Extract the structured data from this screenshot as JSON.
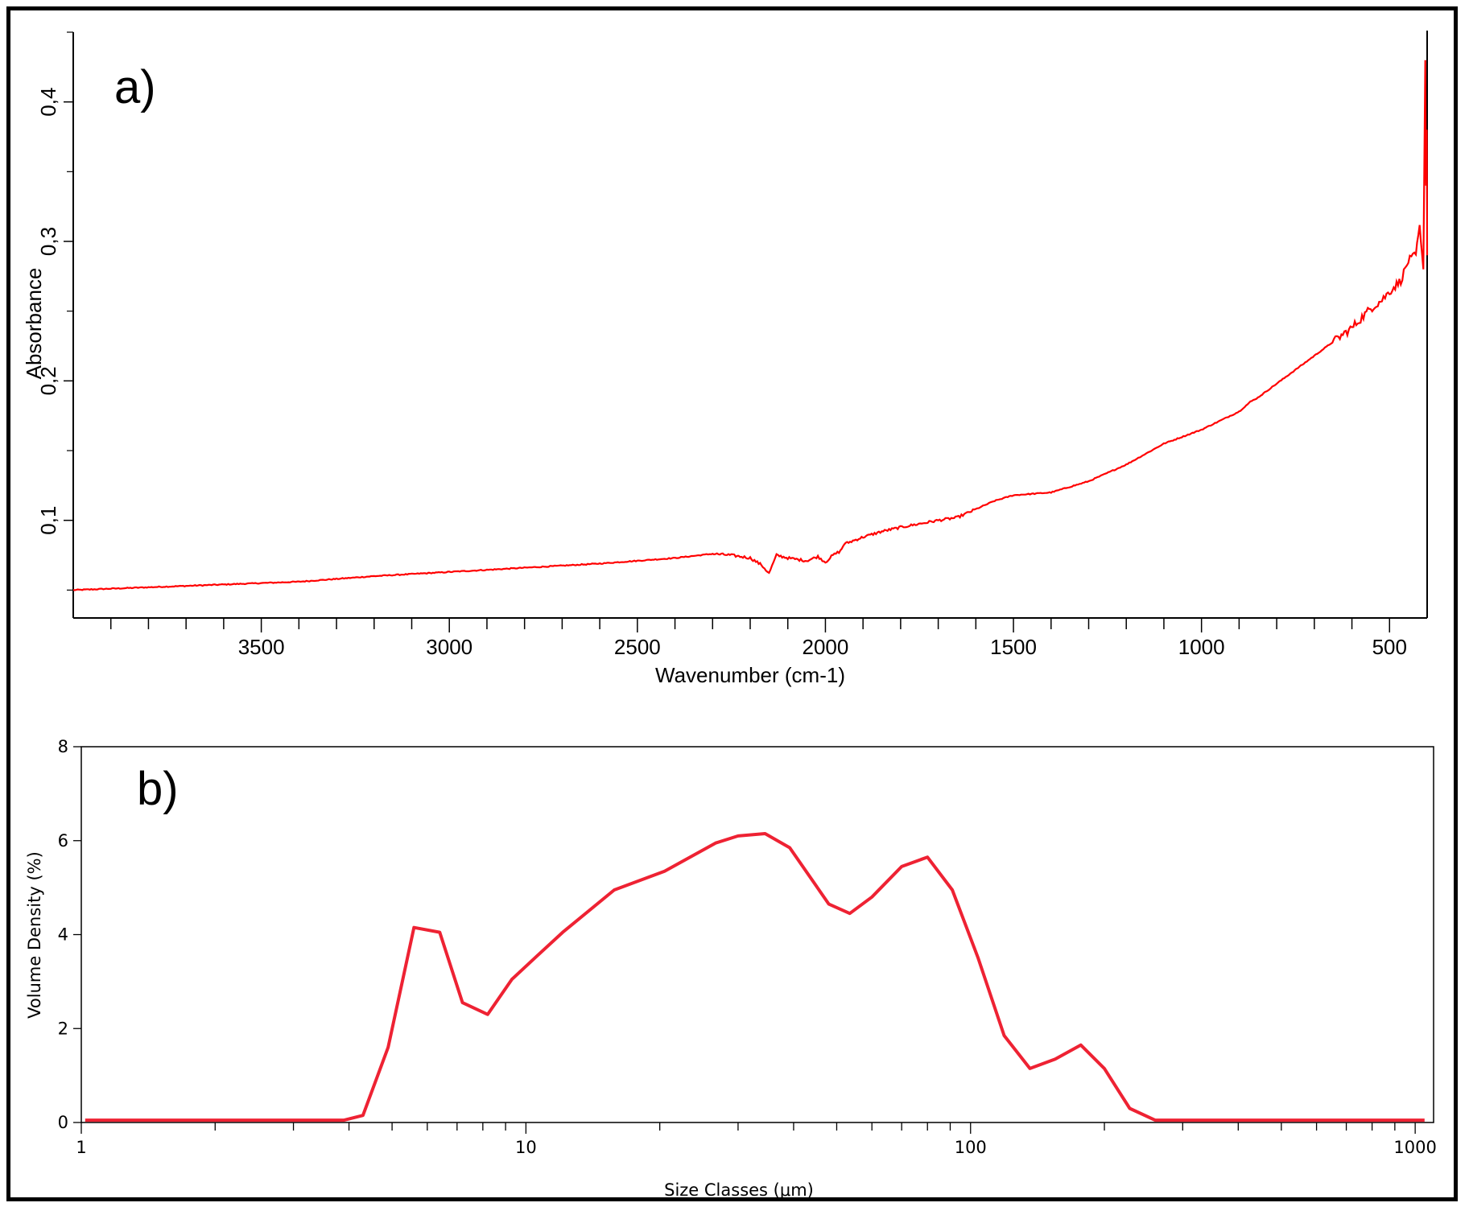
{
  "colors": {
    "series": "#ff0000",
    "series_b": "#ee2233",
    "axis": "#000000",
    "frame": "#000000"
  },
  "chart_data": [
    {
      "type": "line",
      "panel_label": "a)",
      "xlabel": "Wavenumber (cm-1)",
      "ylabel": "Absorbance",
      "xlim": [
        4000,
        400
      ],
      "ylim": [
        0.03,
        0.45
      ],
      "x_ticks": [
        3500,
        3000,
        2500,
        2000,
        1500,
        1000,
        500
      ],
      "x_tick_labels": [
        "3500",
        "3000",
        "2500",
        "2000",
        "1500",
        "1000",
        "500"
      ],
      "y_ticks": [
        0.1,
        0.2,
        0.3,
        0.4
      ],
      "y_tick_labels": [
        "0,1",
        "0,2",
        "0,3",
        "0,4"
      ],
      "grid": false,
      "series": [
        {
          "x": [
            4000,
            3800,
            3600,
            3400,
            3200,
            3000,
            2800,
            2600,
            2400,
            2300,
            2250,
            2200,
            2170,
            2150,
            2130,
            2100,
            2050,
            2020,
            2000,
            1980,
            1960,
            1950,
            1900,
            1850,
            1800,
            1700,
            1650,
            1600,
            1550,
            1500,
            1400,
            1300,
            1200,
            1100,
            1000,
            900,
            870,
            850,
            800,
            700,
            600,
            550,
            520,
            500,
            470,
            450,
            430,
            420,
            410,
            405,
            403,
            401,
            400
          ],
          "y": [
            0.05,
            0.052,
            0.054,
            0.056,
            0.06,
            0.063,
            0.066,
            0.069,
            0.073,
            0.076,
            0.075,
            0.073,
            0.068,
            0.062,
            0.075,
            0.073,
            0.071,
            0.074,
            0.07,
            0.075,
            0.078,
            0.083,
            0.088,
            0.092,
            0.095,
            0.1,
            0.102,
            0.108,
            0.114,
            0.118,
            0.12,
            0.128,
            0.14,
            0.155,
            0.165,
            0.178,
            0.185,
            0.188,
            0.198,
            0.218,
            0.238,
            0.252,
            0.258,
            0.264,
            0.272,
            0.286,
            0.29,
            0.31,
            0.28,
            0.43,
            0.34,
            0.38,
            0.29
          ]
        }
      ]
    },
    {
      "type": "line",
      "panel_label": "b)",
      "xlabel": "Size Classes (μm)",
      "ylabel": "Volume Density (%)",
      "xscale": "log",
      "xlim": [
        1,
        1100
      ],
      "ylim": [
        0,
        8
      ],
      "x_ticks": [
        1,
        10,
        100,
        1000
      ],
      "x_tick_labels": [
        "1",
        "10",
        "100",
        "1000"
      ],
      "y_ticks": [
        0,
        2,
        4,
        6,
        8
      ],
      "y_tick_labels": [
        "0",
        "2",
        "4",
        "6",
        "8"
      ],
      "grid": false,
      "series": [
        {
          "x": [
            1.02,
            2,
            3,
            3.9,
            4.3,
            4.9,
            5.6,
            6.4,
            7.2,
            8.2,
            9.3,
            10.6,
            12.1,
            15.8,
            20.5,
            26.7,
            30,
            34.5,
            39.2,
            48,
            53.5,
            60,
            70,
            80,
            91,
            104,
            119,
            136,
            155,
            177,
            200,
            228,
            260,
            300,
            400,
            700,
            1050
          ],
          "y": [
            0.05,
            0.05,
            0.05,
            0.05,
            0.15,
            1.6,
            4.15,
            4.05,
            2.55,
            2.3,
            3.05,
            3.55,
            4.05,
            4.95,
            5.35,
            5.95,
            6.1,
            6.15,
            5.85,
            4.65,
            4.45,
            4.8,
            5.45,
            5.65,
            4.95,
            3.5,
            1.85,
            1.15,
            1.35,
            1.65,
            1.15,
            0.3,
            0.05,
            0.05,
            0.05,
            0.05,
            0.05
          ]
        }
      ]
    }
  ]
}
